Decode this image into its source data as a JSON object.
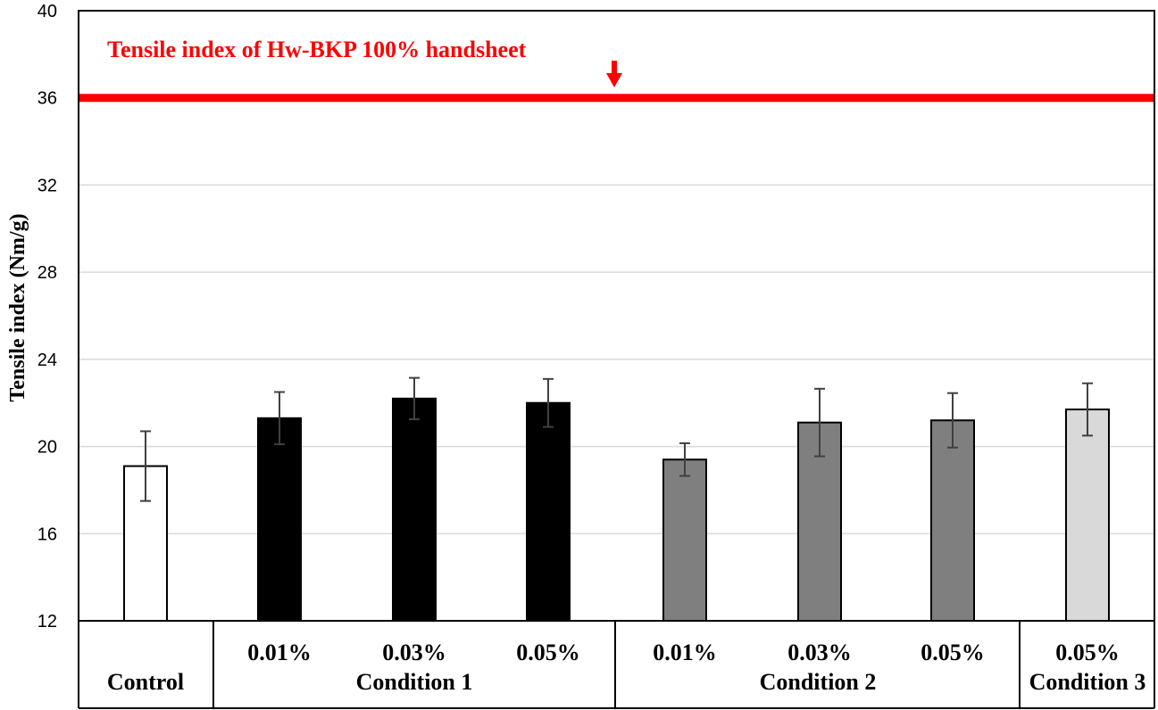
{
  "chart_data": {
    "type": "bar",
    "ylabel": "Tensile index (Nm/g)",
    "ylim": [
      12,
      40
    ],
    "yticks": [
      "12",
      "16",
      "20",
      "24",
      "28",
      "32",
      "36",
      "40"
    ],
    "grid": true,
    "bars": [
      {
        "label": "Control",
        "group": "",
        "value": 19.1,
        "err": 1.6,
        "color": "#ffffff"
      },
      {
        "label": "0.01%",
        "group": "Condition 1",
        "value": 21.3,
        "err": 1.2,
        "color": "#000000"
      },
      {
        "label": "0.03%",
        "group": "Condition 1",
        "value": 22.2,
        "err": 0.95,
        "color": "#000000"
      },
      {
        "label": "0.05%",
        "group": "Condition 1",
        "value": 22.0,
        "err": 1.1,
        "color": "#000000"
      },
      {
        "label": "0.01%",
        "group": "Condition 2",
        "value": 19.4,
        "err": 0.75,
        "color": "#7f7f7f"
      },
      {
        "label": "0.03%",
        "group": "Condition 2",
        "value": 21.1,
        "err": 1.55,
        "color": "#7f7f7f"
      },
      {
        "label": "0.05%",
        "group": "Condition 2",
        "value": 21.2,
        "err": 1.25,
        "color": "#7f7f7f"
      },
      {
        "label": "0.05%",
        "group": "Condition 3",
        "value": 21.7,
        "err": 1.2,
        "color": "#d9d9d9"
      }
    ],
    "groups": [
      "Control",
      "Condition 1",
      "Condition 2",
      "Condition 3"
    ],
    "reference_line": {
      "value": 36,
      "label": "Tensile index of  Hw-BKP 100% handsheet",
      "color": "#ff0000"
    }
  }
}
